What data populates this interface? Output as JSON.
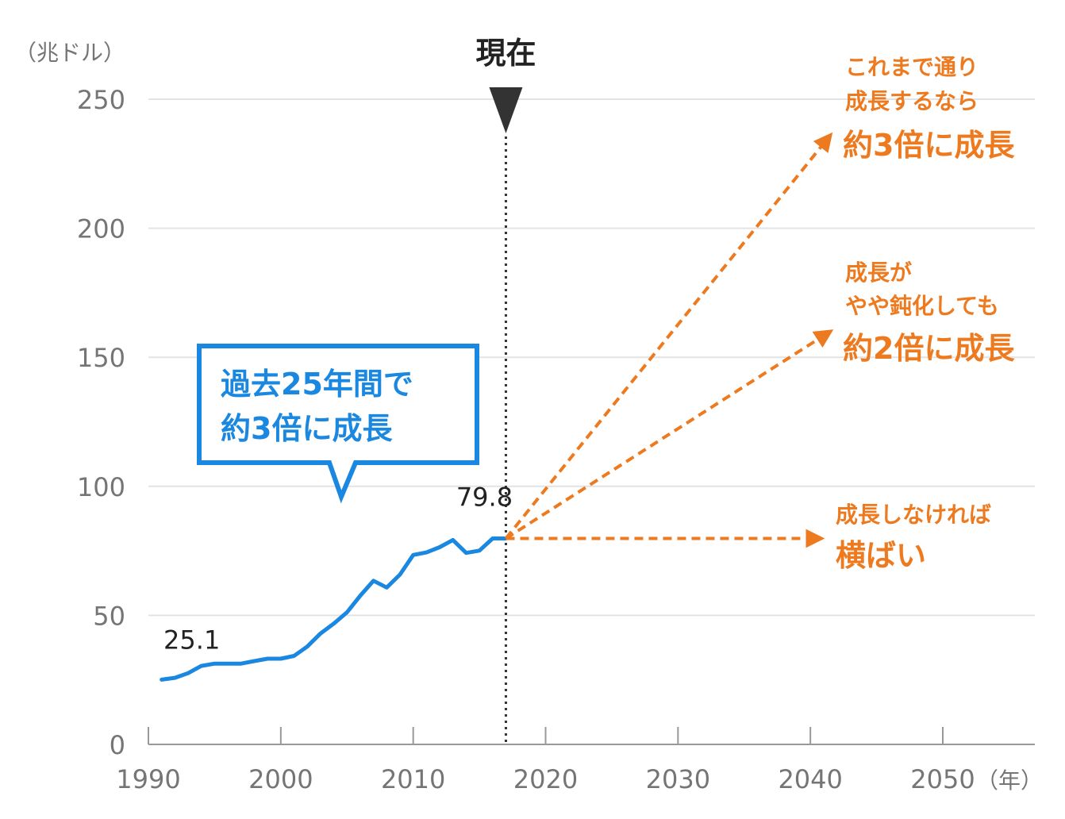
{
  "chart_data": {
    "type": "line",
    "y_unit_label": "（兆ドル）",
    "x_unit_label": "（年）",
    "xlim": [
      1990,
      2057
    ],
    "ylim": [
      0,
      250
    ],
    "y_ticks": [
      0,
      50,
      100,
      150,
      200,
      250
    ],
    "x_ticks": [
      1990,
      2000,
      2010,
      2020,
      2030,
      2040,
      2050
    ],
    "grid": true,
    "series": [
      {
        "color": "#1a87e0",
        "x": [
          1991,
          1992,
          1993,
          1994,
          1995,
          1996,
          1997,
          1998,
          1999,
          2000,
          2001,
          2002,
          2003,
          2004,
          2005,
          2006,
          2007,
          2008,
          2009,
          2010,
          2011,
          2012,
          2013,
          2014,
          2015,
          2016,
          2017
        ],
        "y": [
          25.1,
          25.8,
          27.6,
          30.4,
          31.3,
          31.3,
          31.3,
          32.3,
          33.2,
          33.2,
          34.3,
          37.9,
          43.0,
          46.8,
          51.2,
          57.6,
          63.4,
          60.8,
          65.8,
          73.4,
          74.4,
          76.4,
          79.2,
          74.2,
          75.1,
          79.8,
          79.8
        ]
      }
    ],
    "data_labels": [
      {
        "x": 1991,
        "y": 25.1,
        "text": "25.1"
      },
      {
        "x": 2017,
        "y": 79.8,
        "text": "79.8"
      }
    ],
    "now_marker": {
      "x": 2017,
      "label": "現在"
    },
    "callout": {
      "lines": [
        "過去25年間で",
        "約3倍に成長"
      ],
      "color": "#1a87e0"
    },
    "projections": [
      {
        "color": "#ee7a1f",
        "from": {
          "x": 2017,
          "y": 79.8
        },
        "to": {
          "x": 2041.5,
          "y": 236
        },
        "lines_small": [
          "これまで通り",
          "成長するなら"
        ],
        "line_big": "約3倍に成長"
      },
      {
        "color": "#ee7a1f",
        "from": {
          "x": 2017,
          "y": 79.8
        },
        "to": {
          "x": 2041.5,
          "y": 160
        },
        "lines_small": [
          "成長が",
          "やや鈍化しても"
        ],
        "line_big": "約2倍に成長"
      },
      {
        "color": "#ee7a1f",
        "from": {
          "x": 2017,
          "y": 79.8
        },
        "to": {
          "x": 2040.8,
          "y": 79.8
        },
        "lines_small": [
          "成長しなければ"
        ],
        "line_big": "横ばい"
      }
    ]
  }
}
